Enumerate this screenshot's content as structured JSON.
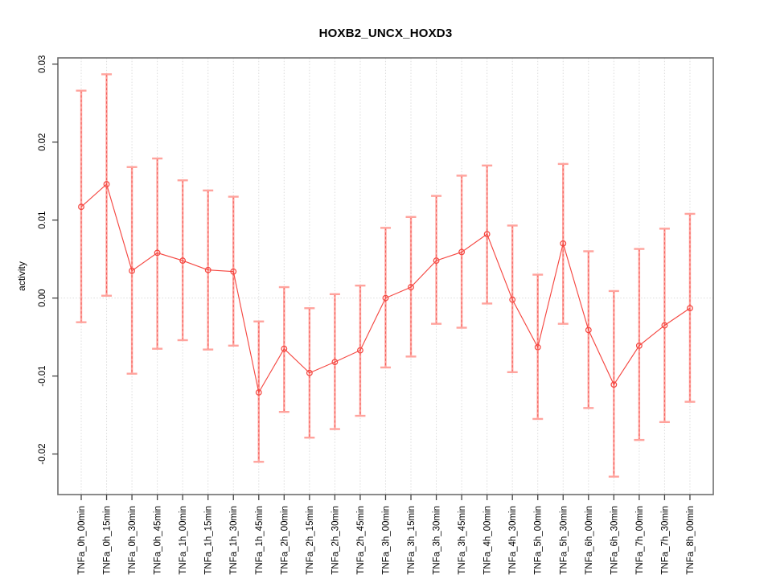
{
  "figure": {
    "title": "HOXB2_UNCX_HOXD3",
    "y_axis_label": "activity"
  },
  "chart_data": {
    "type": "line",
    "title": "HOXB2_UNCX_HOXD3",
    "xlabel": "",
    "ylabel": "activity",
    "legend_position": "none",
    "grid": {
      "vertical_dotted_per_category": true,
      "horizontal_dotted_zero_line": true
    },
    "ylim": [
      -0.0252,
      0.0308
    ],
    "yticks": {
      "values": [
        0.03,
        0.02,
        0.01,
        0.0,
        -0.01,
        -0.02
      ],
      "labels": [
        "0.03",
        "0.02",
        "0.01",
        "0.00",
        "-0.01",
        "-0.02"
      ]
    },
    "categories": [
      "TNFa_0h_00min",
      "TNFa_0h_15min",
      "TNFa_0h_30min",
      "TNFa_0h_45min",
      "TNFa_1h_00min",
      "TNFa_1h_15min",
      "TNFa_1h_30min",
      "TNFa_1h_45min",
      "TNFa_2h_00min",
      "TNFa_2h_15min",
      "TNFa_2h_30min",
      "TNFa_2h_45min",
      "TNFa_3h_00min",
      "TNFa_3h_15min",
      "TNFa_3h_30min",
      "TNFa_3h_45min",
      "TNFa_4h_00min",
      "TNFa_4h_30min",
      "TNFa_5h_00min",
      "TNFa_5h_30min",
      "TNFa_6h_00min",
      "TNFa_6h_30min",
      "TNFa_7h_00min",
      "TNFa_7h_30min",
      "TNFa_8h_00min"
    ],
    "series": [
      {
        "name": "activity",
        "marker": "open-circle",
        "error_bars": true,
        "values": [
          0.0117,
          0.0146,
          0.0035,
          0.0058,
          0.0048,
          0.0036,
          0.0034,
          -0.0121,
          -0.0065,
          -0.0096,
          -0.0082,
          -0.0067,
          0.0,
          0.0014,
          0.0048,
          0.0059,
          0.0082,
          -0.0002,
          -0.0063,
          0.007,
          -0.0041,
          -0.0111,
          -0.0061,
          -0.0035,
          -0.0013
        ],
        "ci_upper": [
          0.0266,
          0.0287,
          0.0168,
          0.0179,
          0.0151,
          0.0138,
          0.013,
          -0.003,
          0.0014,
          -0.0013,
          0.0005,
          0.0016,
          0.009,
          0.0104,
          0.0131,
          0.0157,
          0.017,
          0.0093,
          0.003,
          0.0172,
          0.006,
          0.0009,
          0.0063,
          0.0089,
          0.0108
        ],
        "ci_lower": [
          -0.0031,
          0.0003,
          -0.0097,
          -0.0065,
          -0.0054,
          -0.0066,
          -0.0061,
          -0.021,
          -0.0146,
          -0.0179,
          -0.0168,
          -0.0151,
          -0.0089,
          -0.0075,
          -0.0033,
          -0.0038,
          -0.0007,
          -0.0095,
          -0.0155,
          -0.0033,
          -0.0141,
          -0.0229,
          -0.0182,
          -0.0159,
          -0.0133
        ]
      }
    ],
    "colors": {
      "line": "#f54842",
      "error_bar": "#ffa39d",
      "error_bar_dash": "#ef5350",
      "grid": "#dcdcdc",
      "frame": "#6e6e6e",
      "tick": "#444444",
      "text": "#000000"
    }
  }
}
